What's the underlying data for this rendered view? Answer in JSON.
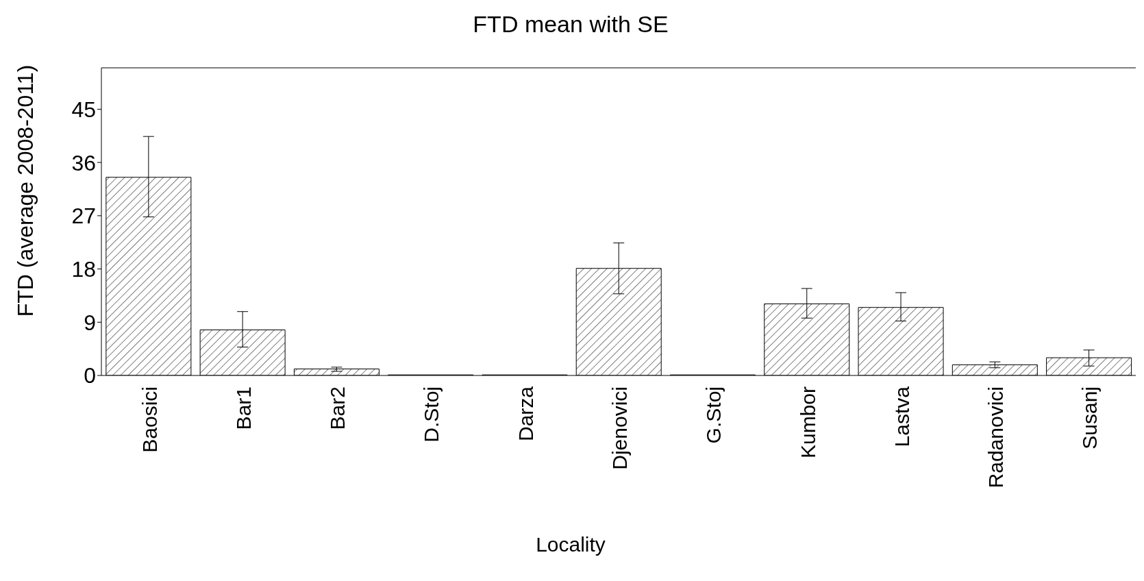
{
  "chart_data": {
    "type": "bar",
    "title": "FTD mean with SE",
    "xlabel": "Locality",
    "ylabel": "FTD (average 2008-2011)",
    "categories": [
      "Baosici",
      "Bar1",
      "Bar2",
      "D.Stoj",
      "Darza",
      "Djenovici",
      "G.Stoj",
      "Kumbor",
      "Lastva",
      "Radanovici",
      "Susanj"
    ],
    "values": [
      33.5,
      7.7,
      1.1,
      0.1,
      0.1,
      18.1,
      0.1,
      12.1,
      11.5,
      1.8,
      3.0
    ],
    "errors": [
      [
        26.8,
        40.4
      ],
      [
        4.8,
        10.8
      ],
      [
        0.7,
        1.4
      ],
      null,
      null,
      [
        13.8,
        22.4
      ],
      null,
      [
        9.7,
        14.7
      ],
      [
        9.2,
        14.0
      ],
      [
        1.3,
        2.3
      ],
      [
        1.6,
        4.3
      ]
    ],
    "color": "#000000",
    "ylim": [
      0,
      52
    ],
    "yticks": [
      0,
      9,
      18,
      27,
      36,
      45
    ],
    "grid": false
  }
}
